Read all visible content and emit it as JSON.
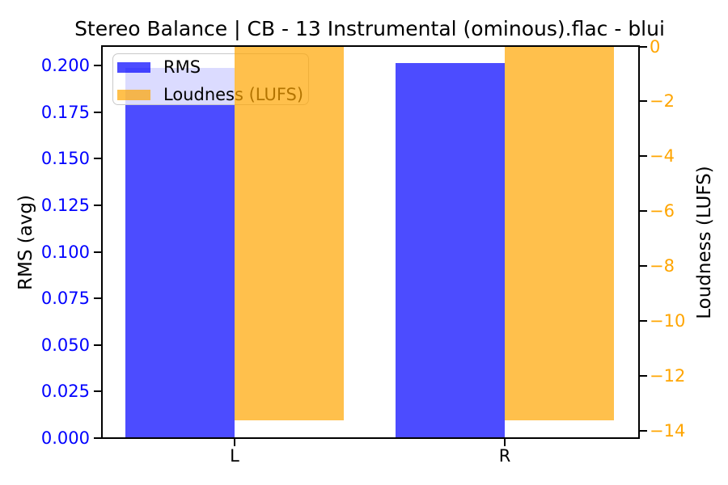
{
  "chart_data": {
    "type": "bar",
    "title": "Stereo Balance | CB - 13 Instrumental (ominous).flac - blui",
    "categories": [
      "L",
      "R"
    ],
    "series": [
      {
        "name": "RMS",
        "axis": "left",
        "color": "rgba(0,0,255,0.7)",
        "values": [
          0.199,
          0.2016
        ]
      },
      {
        "name": "Loudness (LUFS)",
        "axis": "right",
        "color": "rgba(255,165,0,0.7)",
        "values": [
          -13.6,
          -13.6
        ]
      }
    ],
    "xlabel": "",
    "ylabel_left": "RMS (avg)",
    "ylabel_right": "Loudness (LUFS)",
    "ylim_left": [
      0,
      0.2103
    ],
    "ylim_right": [
      -14.26,
      0
    ],
    "yticks_left": [
      0.0,
      0.025,
      0.05,
      0.075,
      0.1,
      0.125,
      0.15,
      0.175,
      0.2
    ],
    "yticks_right": [
      0,
      -2,
      -4,
      -6,
      -8,
      -10,
      -12,
      -14
    ],
    "axis_colors": {
      "left_label": "#0000ff",
      "right_label": "#ffa500",
      "spine": "#000000"
    },
    "legend": {
      "position": "upper left",
      "labels": [
        "RMS",
        "Loudness (LUFS)"
      ]
    },
    "grid": false,
    "loudness_bars_anchor": 0
  }
}
